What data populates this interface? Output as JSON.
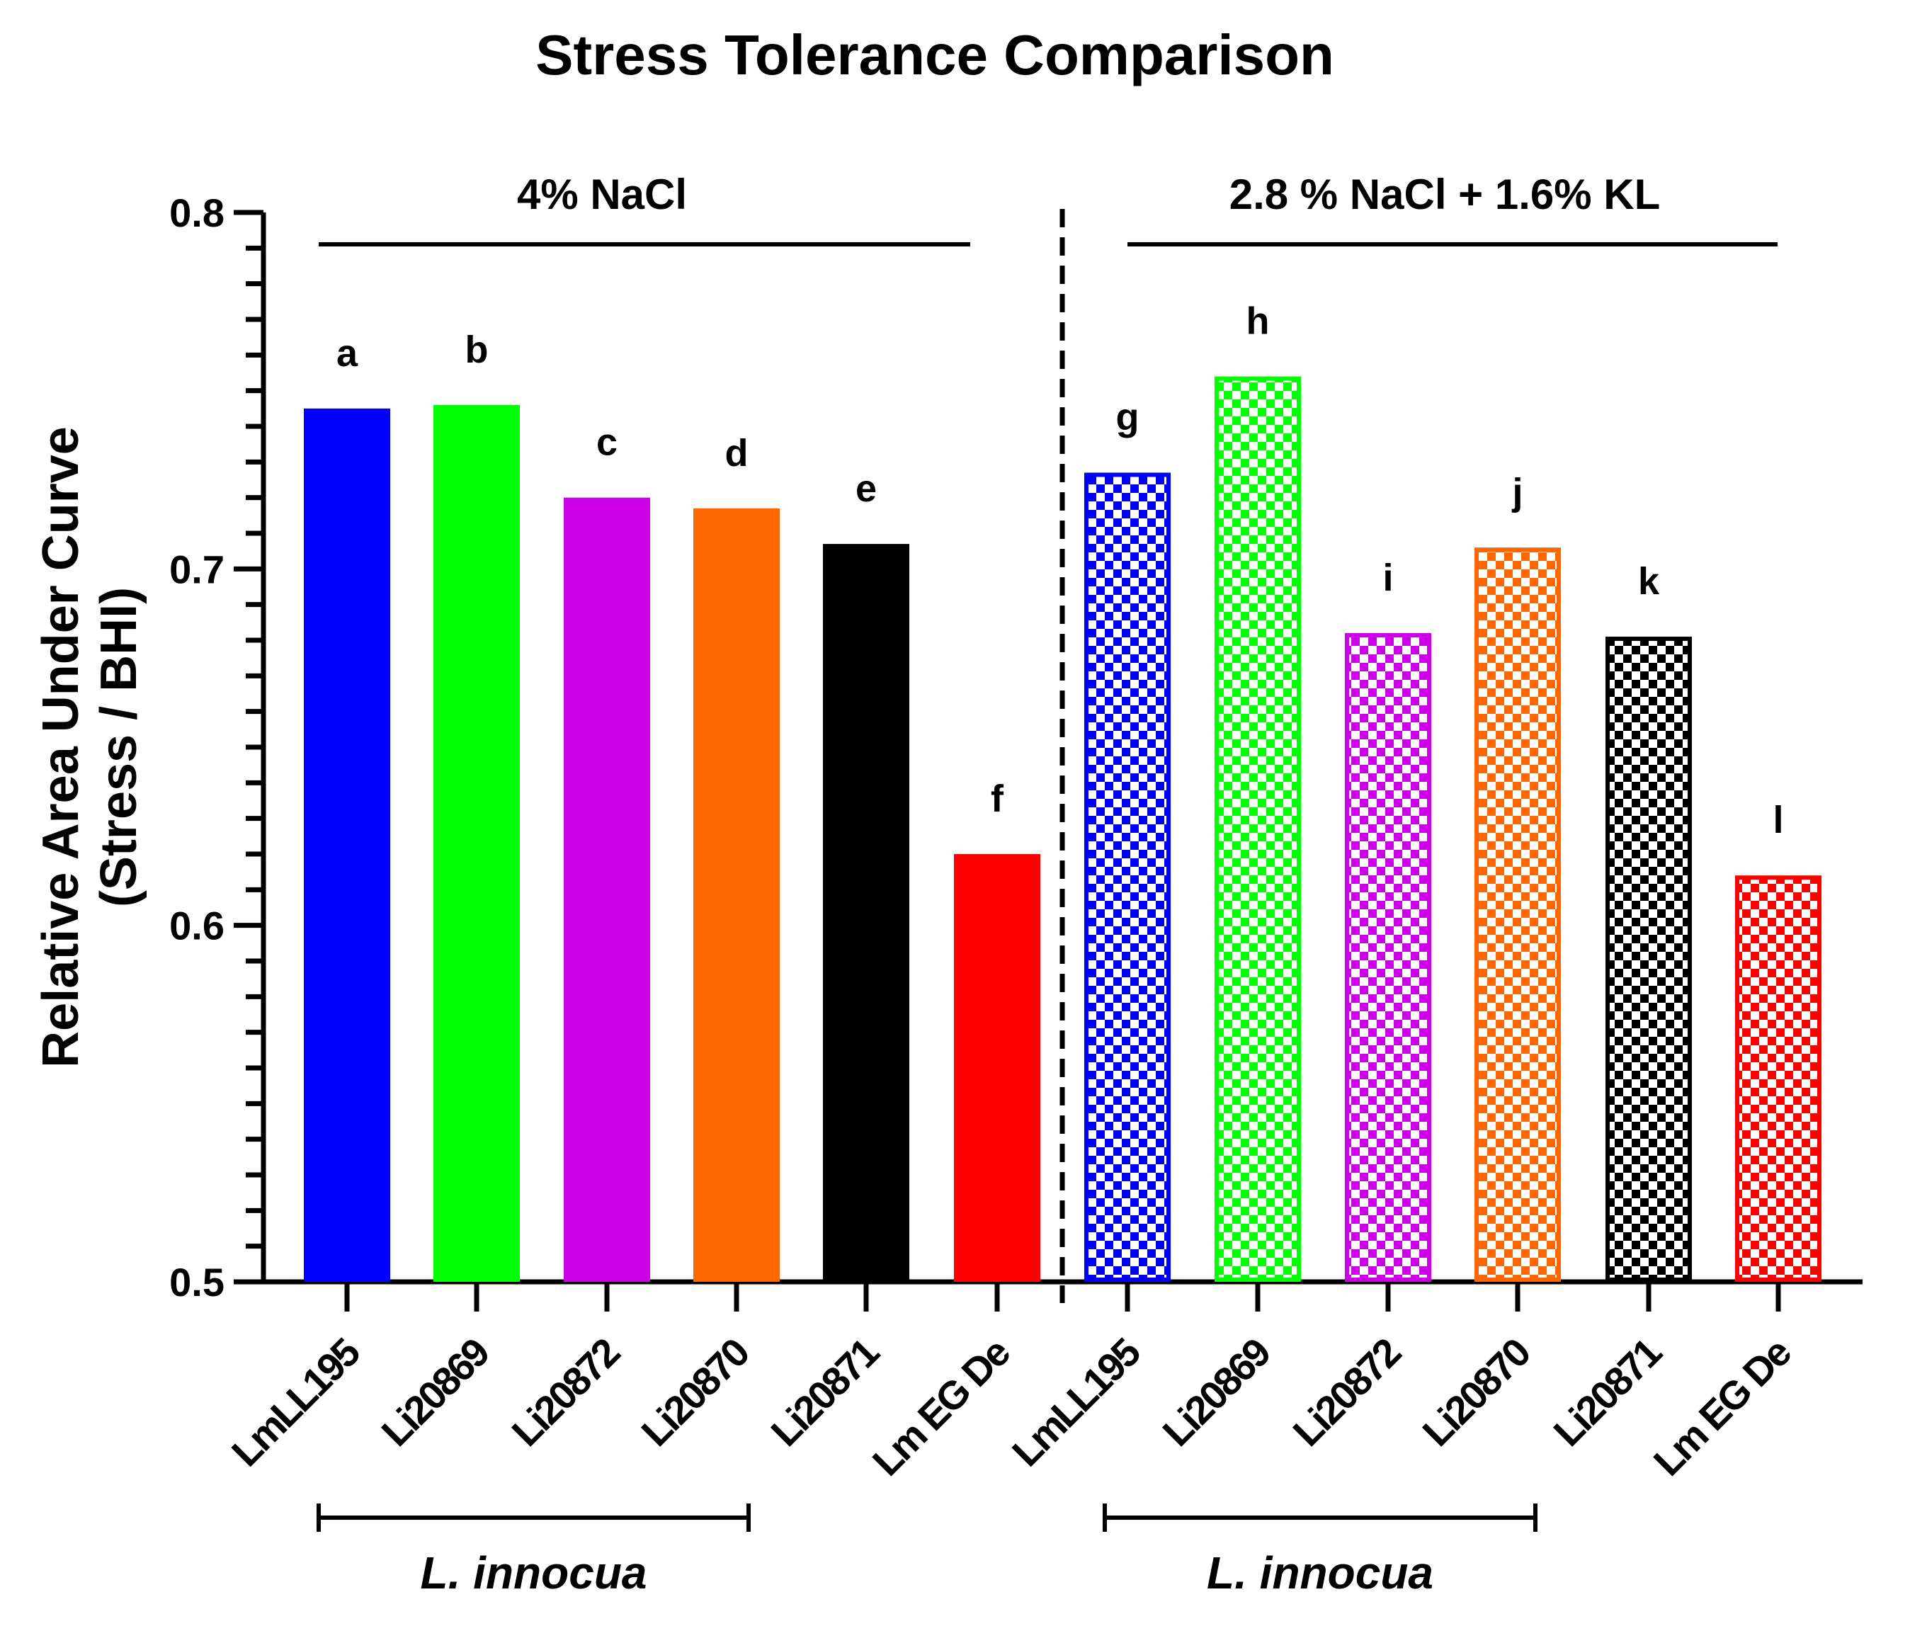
{
  "colors": {
    "blue": "#0000ff",
    "green": "#00ff00",
    "magenta": "#cc00e6",
    "orange": "#ff6600",
    "black": "#000000",
    "red": "#ff0000"
  },
  "chart_data": {
    "type": "bar",
    "title": "Stress Tolerance Comparison",
    "ylabel_line1": "Relative Area Under Curve",
    "ylabel_line2": "(Stress / BHI)",
    "xlabel": "",
    "ylim": [
      0.5,
      0.8
    ],
    "yticks": [
      "0.5",
      "0.6",
      "0.7",
      "0.8"
    ],
    "grid": false,
    "legend": "none",
    "groups": [
      {
        "name": "4% NaCl",
        "pattern": "solid",
        "bars": [
          {
            "category": "LmLL195",
            "value": 0.745,
            "letter": "a",
            "color": "blue"
          },
          {
            "category": "Li20869",
            "value": 0.746,
            "letter": "b",
            "color": "green"
          },
          {
            "category": "Li20872",
            "value": 0.72,
            "letter": "c",
            "color": "magenta"
          },
          {
            "category": "Li20870",
            "value": 0.717,
            "letter": "d",
            "color": "orange"
          },
          {
            "category": "Li20871",
            "value": 0.707,
            "letter": "e",
            "color": "black"
          },
          {
            "category": "Lm EG De",
            "value": 0.62,
            "letter": "f",
            "color": "red"
          }
        ],
        "species_bracket": "L. innocua"
      },
      {
        "name": "2.8 % NaCl + 1.6% KL",
        "pattern": "checkered",
        "bars": [
          {
            "category": "LmLL195",
            "value": 0.727,
            "letter": "g",
            "color": "blue"
          },
          {
            "category": "Li20869",
            "value": 0.754,
            "letter": "h",
            "color": "green"
          },
          {
            "category": "Li20872",
            "value": 0.682,
            "letter": "i",
            "color": "magenta"
          },
          {
            "category": "Li20870",
            "value": 0.706,
            "letter": "j",
            "color": "orange"
          },
          {
            "category": "Li20871",
            "value": 0.681,
            "letter": "k",
            "color": "black"
          },
          {
            "category": "Lm EG De",
            "value": 0.614,
            "letter": "l",
            "color": "red"
          }
        ],
        "species_bracket": "L. innocua"
      }
    ]
  }
}
